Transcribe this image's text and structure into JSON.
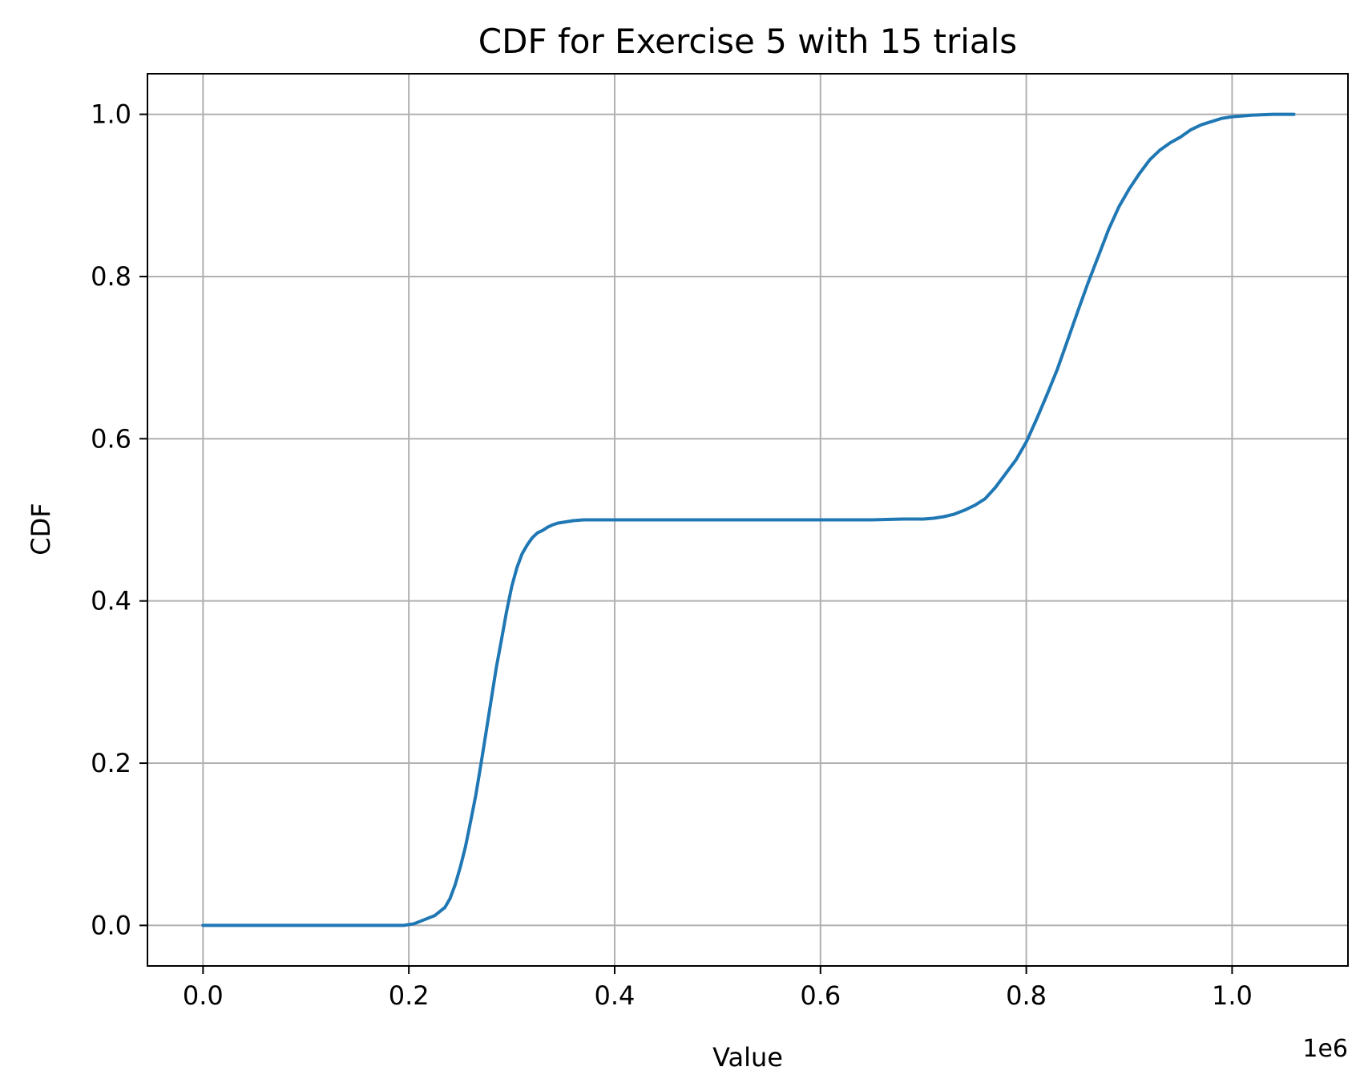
{
  "chart_data": {
    "type": "line",
    "title": "CDF for Exercise 5 with 15 trials",
    "xlabel": "Value",
    "ylabel": "CDF",
    "x_offset_label": "1e6",
    "xlim": [
      -0.054,
      1.1126
    ],
    "ylim": [
      -0.05,
      1.05
    ],
    "x_ticks": [
      0.0,
      0.2,
      0.4,
      0.6,
      0.8,
      1.0
    ],
    "x_tick_labels": [
      "0.0",
      "0.2",
      "0.4",
      "0.6",
      "0.8",
      "1.0"
    ],
    "y_ticks": [
      0.0,
      0.2,
      0.4,
      0.6,
      0.8,
      1.0
    ],
    "y_tick_labels": [
      "0.0",
      "0.2",
      "0.4",
      "0.6",
      "0.8",
      "1.0"
    ],
    "grid": true,
    "legend": false,
    "series": [
      {
        "color": "#1f77b4",
        "x": [
          0.0,
          0.05,
          0.1,
          0.15,
          0.195,
          0.205,
          0.215,
          0.225,
          0.235,
          0.24,
          0.245,
          0.25,
          0.255,
          0.26,
          0.265,
          0.27,
          0.275,
          0.28,
          0.285,
          0.29,
          0.295,
          0.3,
          0.305,
          0.31,
          0.315,
          0.32,
          0.325,
          0.33,
          0.335,
          0.34,
          0.345,
          0.35,
          0.355,
          0.36,
          0.37,
          0.38,
          0.4,
          0.5,
          0.6,
          0.65,
          0.68,
          0.7,
          0.71,
          0.72,
          0.73,
          0.74,
          0.75,
          0.76,
          0.77,
          0.78,
          0.79,
          0.8,
          0.81,
          0.82,
          0.83,
          0.84,
          0.85,
          0.86,
          0.87,
          0.88,
          0.89,
          0.9,
          0.91,
          0.92,
          0.93,
          0.94,
          0.95,
          0.96,
          0.97,
          0.98,
          0.99,
          1.0,
          1.01,
          1.02,
          1.04,
          1.06
        ],
        "y": [
          0.0,
          0.0,
          0.0,
          0.0,
          0.0,
          0.002,
          0.007,
          0.012,
          0.022,
          0.033,
          0.05,
          0.072,
          0.097,
          0.128,
          0.16,
          0.198,
          0.238,
          0.278,
          0.318,
          0.352,
          0.387,
          0.418,
          0.441,
          0.458,
          0.469,
          0.478,
          0.484,
          0.487,
          0.491,
          0.494,
          0.496,
          0.497,
          0.498,
          0.499,
          0.5,
          0.5,
          0.5,
          0.5,
          0.5,
          0.5,
          0.501,
          0.501,
          0.502,
          0.504,
          0.507,
          0.512,
          0.518,
          0.526,
          0.54,
          0.557,
          0.574,
          0.596,
          0.624,
          0.654,
          0.685,
          0.721,
          0.757,
          0.792,
          0.825,
          0.858,
          0.886,
          0.908,
          0.927,
          0.944,
          0.956,
          0.965,
          0.972,
          0.981,
          0.987,
          0.991,
          0.995,
          0.997,
          0.998,
          0.999,
          1.0,
          1.0
        ]
      }
    ]
  }
}
